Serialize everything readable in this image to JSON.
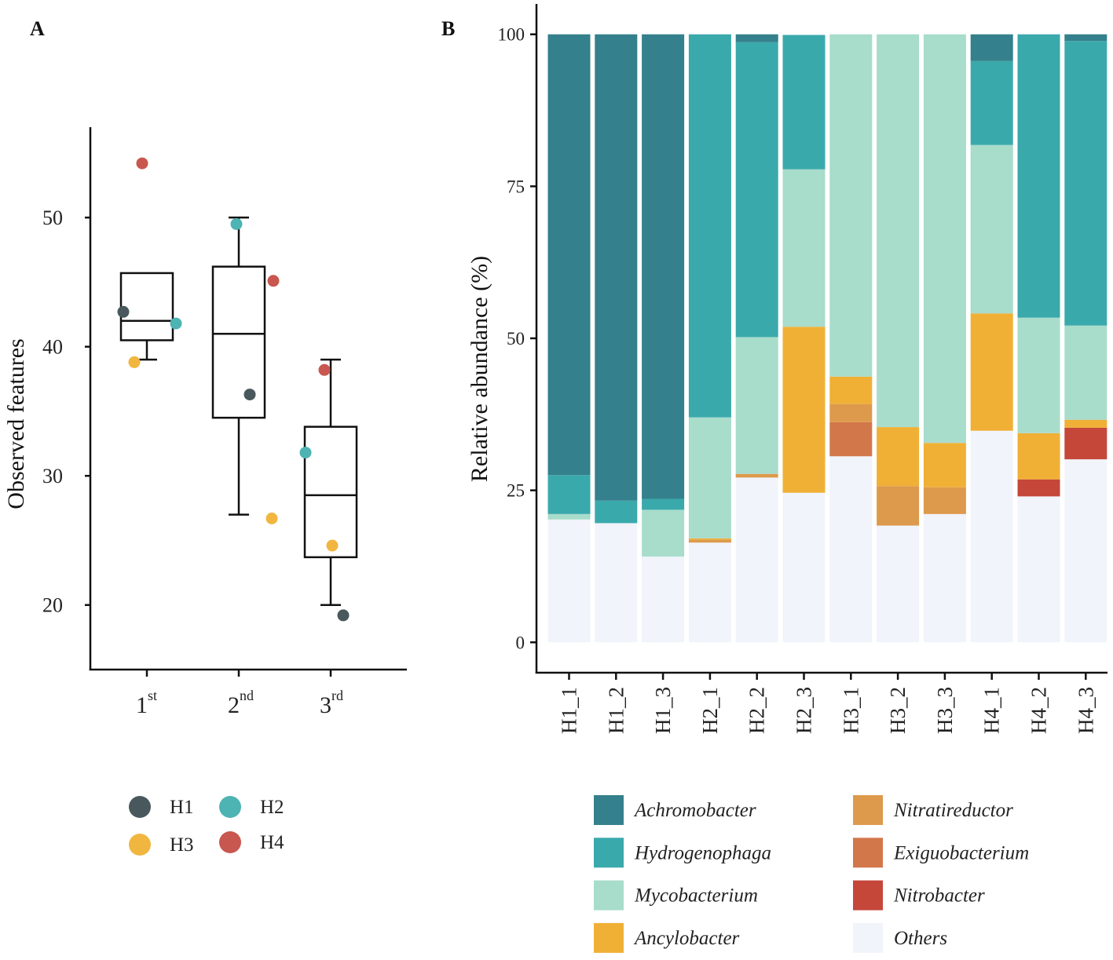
{
  "colors": {
    "H1": "#48585c",
    "H2": "#4db3b3",
    "H3": "#f0b640",
    "H4": "#c8574f",
    "Achromobacter": "#34808c",
    "Hydrogenophaga": "#3aa9ac",
    "Mycobacterium": "#a8dccb",
    "Ancylobacter": "#f0b036",
    "Nitratireductor": "#dd9a4c",
    "Exiguobacterium": "#d2774a",
    "Nitrobacter": "#c4473a",
    "Others": "#f1f4fa"
  },
  "chart_data": [
    {
      "type": "box",
      "panel_label": "A",
      "ylabel": "Observed features",
      "ylim": [
        15,
        57
      ],
      "yticks": [
        "20",
        "30",
        "40",
        "50"
      ],
      "categories": [
        {
          "base": "1",
          "sup": "st"
        },
        {
          "base": "2",
          "sup": "nd"
        },
        {
          "base": "3",
          "sup": "rd"
        }
      ],
      "boxes": [
        {
          "whisker_low": 39.0,
          "q1": 40.5,
          "median": 42.0,
          "q3": 45.7,
          "whisker_high": 45.7
        },
        {
          "whisker_low": 27.0,
          "q1": 34.5,
          "median": 41.0,
          "q3": 46.2,
          "whisker_high": 50.0
        },
        {
          "whisker_low": 20.0,
          "q1": 23.7,
          "median": 28.5,
          "q3": 33.8,
          "whisker_high": 39.0
        }
      ],
      "points": [
        {
          "group": 0,
          "series": "H1",
          "value": 42.7
        },
        {
          "group": 0,
          "series": "H2",
          "value": 41.8
        },
        {
          "group": 0,
          "series": "H3",
          "value": 38.8
        },
        {
          "group": 0,
          "series": "H4",
          "value": 54.2
        },
        {
          "group": 1,
          "series": "H1",
          "value": 36.3
        },
        {
          "group": 1,
          "series": "H2",
          "value": 49.5
        },
        {
          "group": 1,
          "series": "H3",
          "value": 26.7
        },
        {
          "group": 1,
          "series": "H4",
          "value": 45.1
        },
        {
          "group": 2,
          "series": "H1",
          "value": 19.2
        },
        {
          "group": 2,
          "series": "H2",
          "value": 31.8
        },
        {
          "group": 2,
          "series": "H3",
          "value": 24.6
        },
        {
          "group": 2,
          "series": "H4",
          "value": 38.2
        }
      ],
      "legend": [
        "H1",
        "H2",
        "H3",
        "H4"
      ]
    },
    {
      "type": "stacked-bar",
      "panel_label": "B",
      "ylabel": "Relative abundance (%)",
      "ylim": [
        -5,
        105
      ],
      "yticks": [
        "0",
        "25",
        "50",
        "75",
        "100"
      ],
      "categories": [
        "H1_1",
        "H1_2",
        "H1_3",
        "H2_1",
        "H2_2",
        "H2_3",
        "H3_1",
        "H3_2",
        "H3_3",
        "H4_1",
        "H4_2",
        "H4_3"
      ],
      "series": [
        {
          "name": "Others",
          "values": [
            20.2,
            19.6,
            14.1,
            16.4,
            27.1,
            24.6,
            30.6,
            19.2,
            21.1,
            34.8,
            24.0,
            30.1
          ]
        },
        {
          "name": "Nitrobacter",
          "values": [
            0,
            0,
            0,
            0,
            0,
            0,
            0,
            0,
            0,
            0,
            2.8,
            5.2
          ]
        },
        {
          "name": "Exiguobacterium",
          "values": [
            0,
            0,
            0,
            0,
            0,
            0,
            5.6,
            0,
            0,
            0,
            0,
            0
          ]
        },
        {
          "name": "Nitratireductor",
          "values": [
            0,
            0,
            0,
            0.5,
            0.6,
            0,
            3.0,
            6.5,
            4.4,
            0,
            0,
            0
          ]
        },
        {
          "name": "Ancylobacter",
          "values": [
            0,
            0,
            0,
            0.2,
            0,
            27.3,
            4.5,
            9.7,
            7.3,
            19.3,
            7.6,
            1.3
          ]
        },
        {
          "name": "Mycobacterium",
          "values": [
            0.9,
            0,
            7.7,
            19.9,
            22.5,
            25.9,
            56.3,
            64.6,
            67.2,
            27.7,
            19.0,
            15.5
          ]
        },
        {
          "name": "Hydrogenophaga",
          "values": [
            6.4,
            3.7,
            1.8,
            63.0,
            48.5,
            22.1,
            0,
            0,
            0,
            13.8,
            46.6,
            46.8
          ]
        },
        {
          "name": "Achromobacter",
          "values": [
            72.5,
            76.7,
            76.4,
            0,
            1.3,
            0,
            0,
            0,
            0,
            4.4,
            0,
            1.1
          ]
        }
      ],
      "legend": [
        "Achromobacter",
        "Hydrogenophaga",
        "Mycobacterium",
        "Ancylobacter",
        "Nitratireductor",
        "Exiguobacterium",
        "Nitrobacter",
        "Others"
      ]
    }
  ]
}
